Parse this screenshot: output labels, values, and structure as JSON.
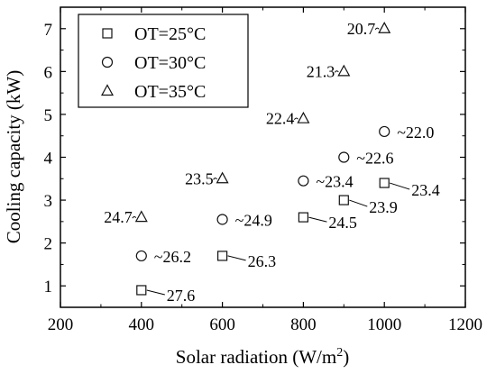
{
  "chart_data": {
    "type": "scatter",
    "title": "",
    "xlabel": "Solar radiation (W/m",
    "xlabel_sup": "2",
    "xlabel_end": ")",
    "ylabel": "Cooling capacity (kW)",
    "xlim": [
      200,
      1200
    ],
    "ylim": [
      0.5,
      7.5
    ],
    "x_ticks": [
      200,
      400,
      600,
      800,
      1000,
      1200
    ],
    "y_ticks": [
      1,
      2,
      3,
      4,
      5,
      6,
      7
    ],
    "grid": false,
    "legend_position": "top-left",
    "series": [
      {
        "name": "OT=25°C",
        "marker": "square",
        "points": [
          {
            "x": 400,
            "y": 0.9,
            "label": "27.6"
          },
          {
            "x": 600,
            "y": 1.7,
            "label": "26.3"
          },
          {
            "x": 800,
            "y": 2.6,
            "label": "24.5"
          },
          {
            "x": 900,
            "y": 3.0,
            "label": "23.9"
          },
          {
            "x": 1000,
            "y": 3.4,
            "label": "23.4"
          }
        ]
      },
      {
        "name": "OT=30°C",
        "marker": "circle",
        "points": [
          {
            "x": 400,
            "y": 1.7,
            "label": "26.2"
          },
          {
            "x": 600,
            "y": 2.55,
            "label": "24.9"
          },
          {
            "x": 800,
            "y": 3.45,
            "label": "23.4"
          },
          {
            "x": 900,
            "y": 4.0,
            "label": "22.6"
          },
          {
            "x": 1000,
            "y": 4.6,
            "label": "22.0"
          }
        ]
      },
      {
        "name": "OT=35°C",
        "marker": "triangle",
        "points": [
          {
            "x": 400,
            "y": 2.6,
            "label": "24.7"
          },
          {
            "x": 600,
            "y": 3.5,
            "label": "23.5"
          },
          {
            "x": 800,
            "y": 4.9,
            "label": "22.4"
          },
          {
            "x": 900,
            "y": 6.0,
            "label": "21.3"
          },
          {
            "x": 1000,
            "y": 7.0,
            "label": "20.7"
          }
        ]
      }
    ]
  }
}
